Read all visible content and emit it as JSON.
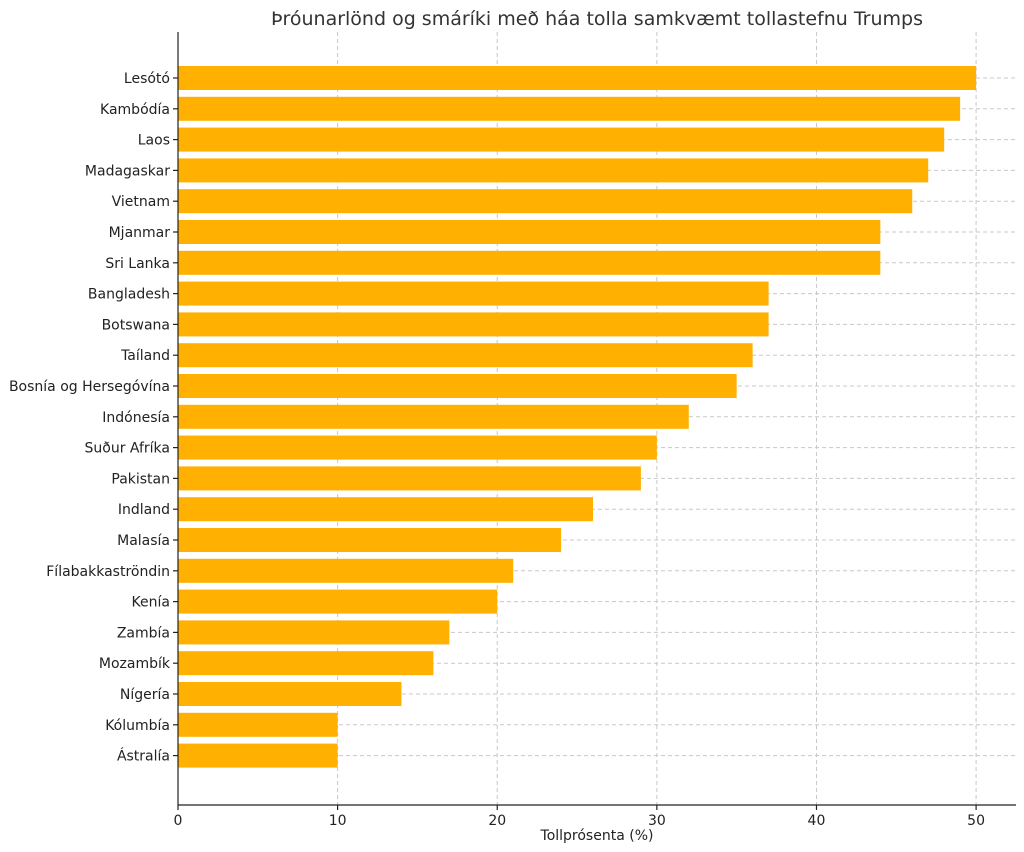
{
  "chart_data": {
    "type": "bar",
    "orientation": "horizontal",
    "title": "Þróunarlönd og smáríki með háa tolla samkvæmt tollastefnu Trumps",
    "xlabel": "Tollprósenta (%)",
    "ylabel": "",
    "categories": [
      "Lesótó",
      "Kambódía",
      "Laos",
      "Madagaskar",
      "Vietnam",
      "Mjanmar",
      "Sri Lanka",
      "Bangladesh",
      "Botswana",
      "Taíland",
      "Bosnía og Hersegóvína",
      "Indónesía",
      "Suður Afríka",
      "Pakistan",
      "Indland",
      "Malasía",
      "Fílabakkaströndin",
      "Kenía",
      "Zambía",
      "Mozambík",
      "Nígería",
      "Kólumbía",
      "Ástralía"
    ],
    "values": [
      50,
      49,
      48,
      47,
      46,
      44,
      44,
      37,
      37,
      36,
      35,
      32,
      30,
      29,
      26,
      24,
      21,
      20,
      17,
      16,
      14,
      10,
      10
    ],
    "xlim": [
      0,
      52.5
    ],
    "xticks": [
      0,
      10,
      20,
      30,
      40,
      50
    ],
    "grid": true,
    "bar_color": "#FFB000"
  }
}
